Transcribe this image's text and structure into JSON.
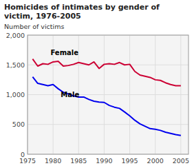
{
  "chart_data": {
    "type": "line",
    "title": "Homicides of intimates by gender of victim, 1976-2005",
    "y_label": "Number of victims",
    "x": [
      1976,
      1977,
      1978,
      1979,
      1980,
      1981,
      1982,
      1983,
      1984,
      1985,
      1986,
      1987,
      1988,
      1989,
      1990,
      1991,
      1992,
      1993,
      1994,
      1995,
      1996,
      1997,
      1998,
      1999,
      2000,
      2001,
      2002,
      2003,
      2004,
      2005
    ],
    "series": [
      {
        "name": "Female",
        "color": "#cc0033",
        "values": [
          1600,
          1480,
          1520,
          1510,
          1550,
          1560,
          1480,
          1490,
          1510,
          1540,
          1520,
          1500,
          1550,
          1440,
          1510,
          1520,
          1510,
          1540,
          1500,
          1510,
          1390,
          1330,
          1310,
          1290,
          1250,
          1240,
          1200,
          1170,
          1150,
          1150
        ]
      },
      {
        "name": "Male",
        "color": "#0000ee",
        "values": [
          1300,
          1190,
          1170,
          1150,
          1170,
          1100,
          1040,
          1010,
          980,
          960,
          960,
          920,
          890,
          875,
          870,
          820,
          790,
          770,
          710,
          645,
          570,
          510,
          470,
          430,
          420,
          400,
          370,
          350,
          330,
          315
        ]
      }
    ],
    "annotations": [
      {
        "text": "Female",
        "x": 1979.5,
        "y": 1660
      },
      {
        "text": "Male",
        "x": 1981.5,
        "y": 960
      }
    ],
    "xlim": [
      1975,
      2006.5
    ],
    "xticks": [
      1975,
      1980,
      1985,
      1990,
      1995,
      2000,
      2005
    ],
    "ylim": [
      0,
      2000
    ],
    "yticks": [
      0,
      500,
      {
        "value": 1000,
        "label": "1,000"
      },
      {
        "value": 1500,
        "label": "1,500"
      },
      {
        "value": 2000,
        "label": "2,000"
      }
    ],
    "grid": true
  }
}
